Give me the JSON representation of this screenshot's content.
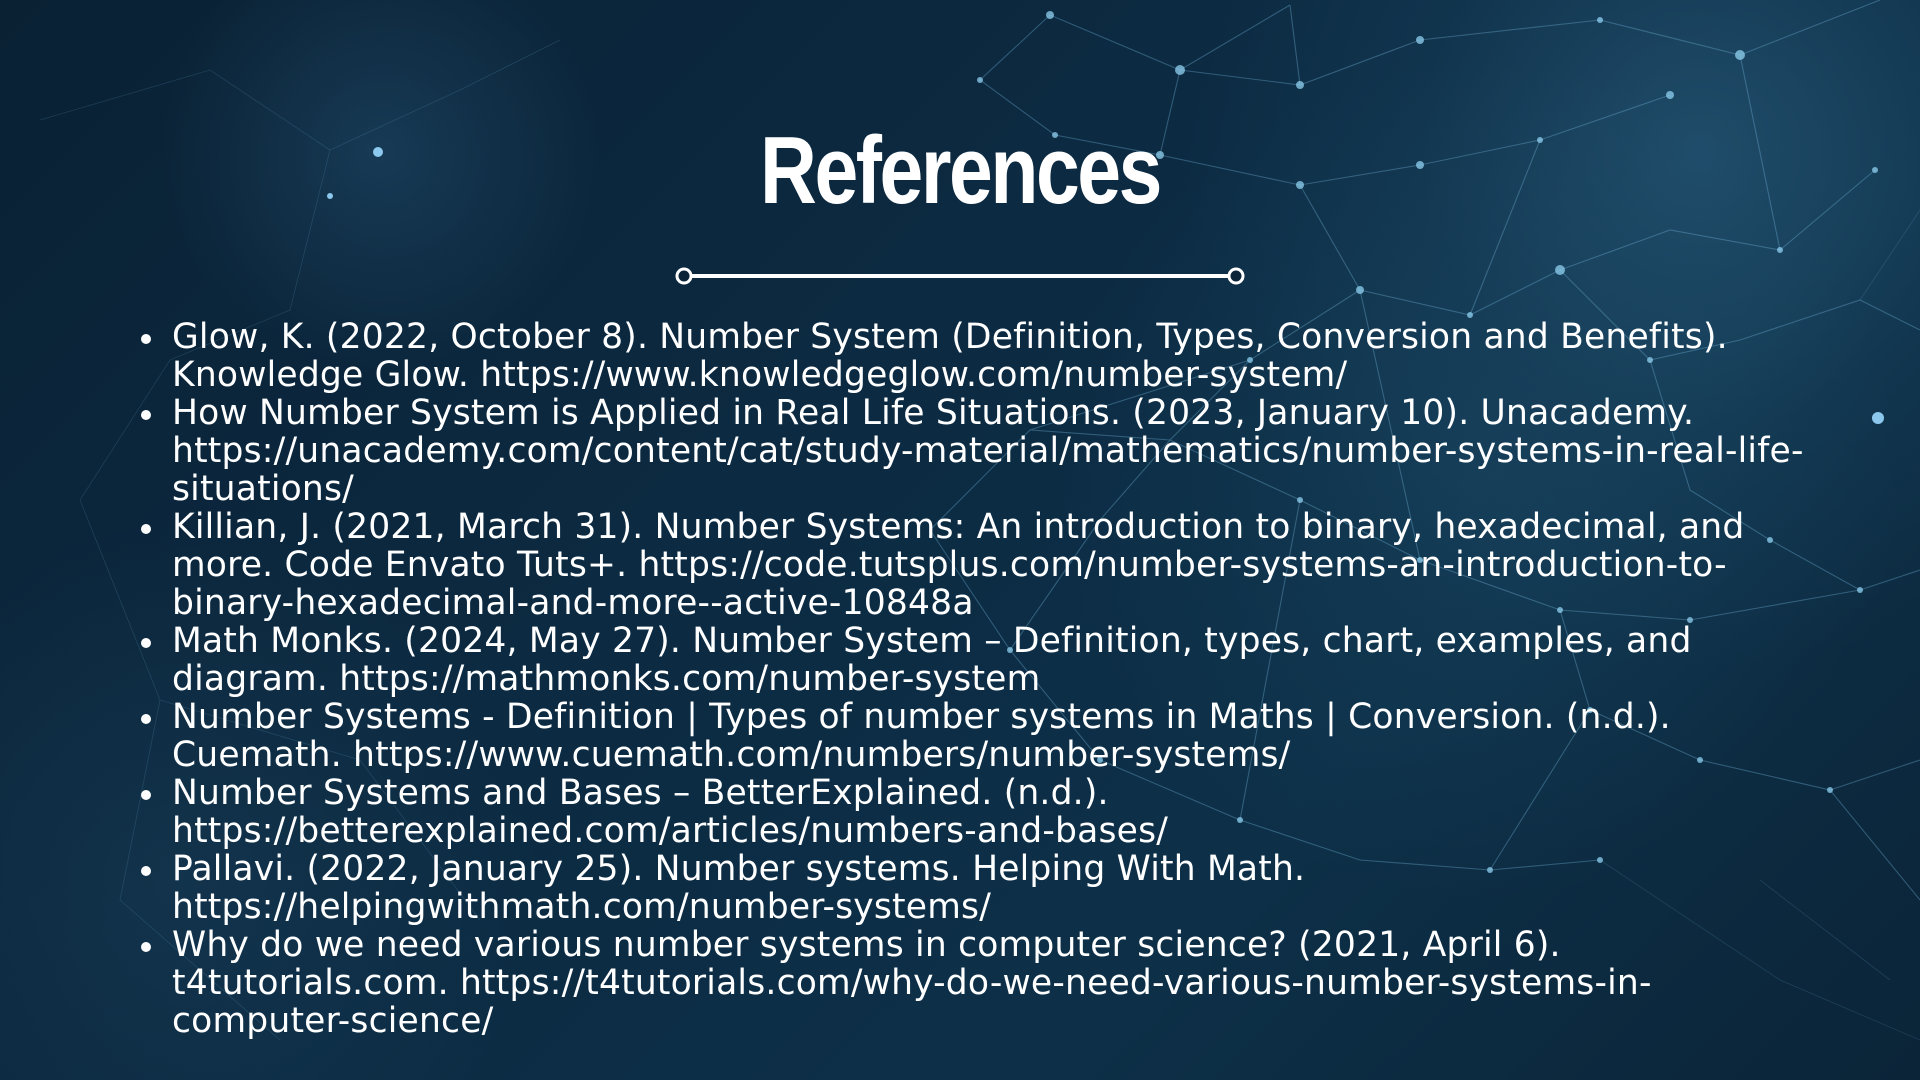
{
  "slide": {
    "title": "References",
    "references": [
      "Glow, K. (2022, October 8). Number System (Definition, Types, Conversion and Benefits). Knowledge Glow. https://www.knowledgeglow.com/number-system/",
      "How Number System is Applied in Real Life Situations. (2023, January 10). Unacademy. https://unacademy.com/content/cat/study-material/mathematics/number-systems-in-real-life-situations/",
      "Killian, J. (2021, March 31). Number Systems: An introduction to binary, hexadecimal, and more. Code Envato Tuts+. https://code.tutsplus.com/number-systems-an-introduction-to-binary-hexadecimal-and-more--active-10848a",
      "Math Monks. (2024, May 27). Number System – Definition, types, chart, examples, and diagram. https://mathmonks.com/number-system",
      "Number Systems - Definition | Types of number systems in Maths | Conversion. (n.d.). Cuemath. https://www.cuemath.com/numbers/number-systems/",
      "Number Systems and Bases – BetterExplained. (n.d.). https://betterexplained.com/articles/numbers-and-bases/",
      "Pallavi. (2022, January 25). Number systems. Helping With Math. https://helpingwithmath.com/number-systems/",
      "Why do we need various number systems in computer science? (2021, April 6). t4tutorials.com. https://t4tutorials.com/why-do-we-need-various-number-systems-in-computer-science/"
    ]
  },
  "colors": {
    "background": "#0b2438",
    "text": "#ffffff",
    "network": "#6fb4d9"
  }
}
